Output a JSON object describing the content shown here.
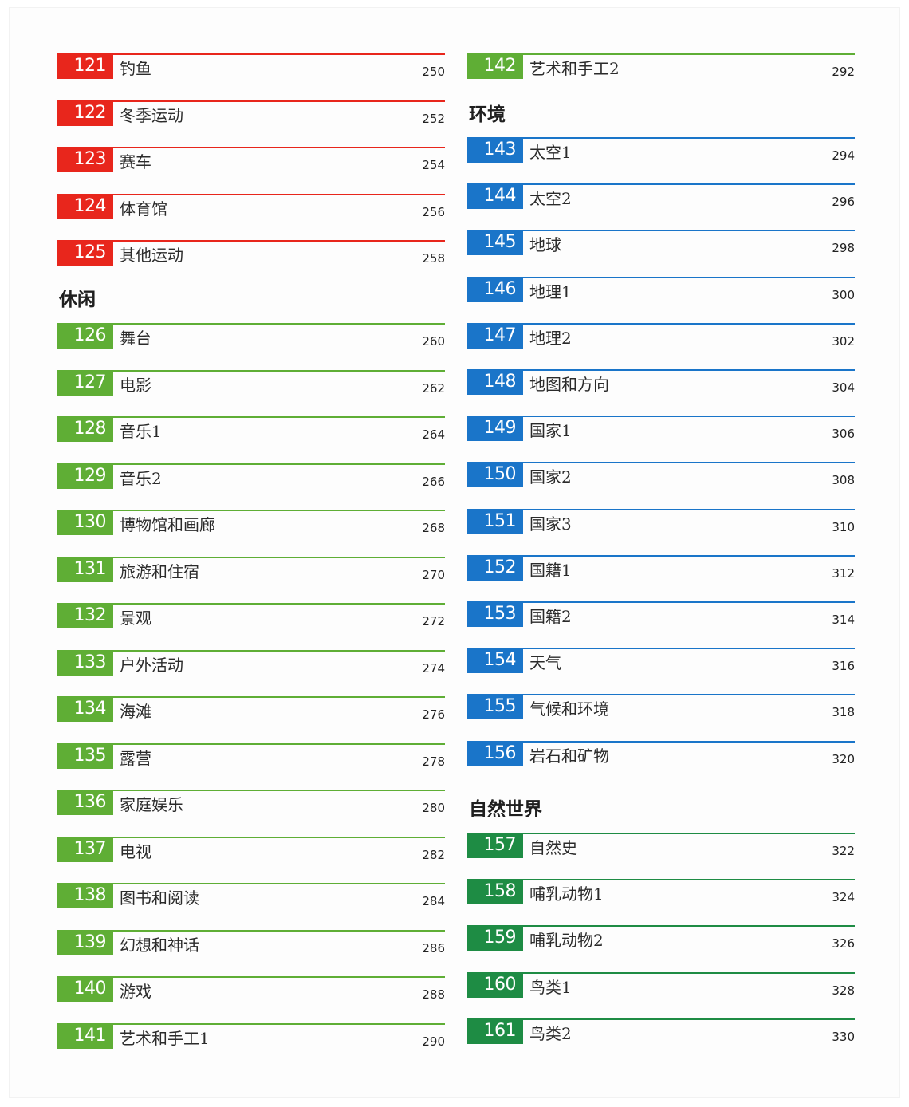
{
  "colors": {
    "sports": "#e8261c",
    "leisure": "#5fae35",
    "environment": "#1a75c9",
    "natural_world": "#1e8c44"
  },
  "left_column": {
    "sports_entries": [
      {
        "num": "121",
        "title": "钓鱼",
        "page": "250"
      },
      {
        "num": "122",
        "title": "冬季运动",
        "page": "252"
      },
      {
        "num": "123",
        "title": "赛车",
        "page": "254"
      },
      {
        "num": "124",
        "title": "体育馆",
        "page": "256"
      },
      {
        "num": "125",
        "title": "其他运动",
        "page": "258"
      }
    ],
    "leisure_heading": "休闲",
    "leisure_entries": [
      {
        "num": "126",
        "title": "舞台",
        "page": "260"
      },
      {
        "num": "127",
        "title": "电影",
        "page": "262"
      },
      {
        "num": "128",
        "title": "音乐1",
        "page": "264"
      },
      {
        "num": "129",
        "title": "音乐2",
        "page": "266"
      },
      {
        "num": "130",
        "title": "博物馆和画廊",
        "page": "268"
      },
      {
        "num": "131",
        "title": "旅游和住宿",
        "page": "270"
      },
      {
        "num": "132",
        "title": "景观",
        "page": "272"
      },
      {
        "num": "133",
        "title": "户外活动",
        "page": "274"
      },
      {
        "num": "134",
        "title": "海滩",
        "page": "276"
      },
      {
        "num": "135",
        "title": "露营",
        "page": "278"
      },
      {
        "num": "136",
        "title": "家庭娱乐",
        "page": "280"
      },
      {
        "num": "137",
        "title": "电视",
        "page": "282"
      },
      {
        "num": "138",
        "title": "图书和阅读",
        "page": "284"
      },
      {
        "num": "139",
        "title": "幻想和神话",
        "page": "286"
      },
      {
        "num": "140",
        "title": "游戏",
        "page": "288"
      },
      {
        "num": "141",
        "title": "艺术和手工1",
        "page": "290"
      }
    ]
  },
  "right_column": {
    "leisure_entries": [
      {
        "num": "142",
        "title": "艺术和手工2",
        "page": "292"
      }
    ],
    "environment_heading": "环境",
    "environment_entries": [
      {
        "num": "143",
        "title": "太空1",
        "page": "294"
      },
      {
        "num": "144",
        "title": "太空2",
        "page": "296"
      },
      {
        "num": "145",
        "title": "地球",
        "page": "298"
      },
      {
        "num": "146",
        "title": "地理1",
        "page": "300"
      },
      {
        "num": "147",
        "title": "地理2",
        "page": "302"
      },
      {
        "num": "148",
        "title": "地图和方向",
        "page": "304"
      },
      {
        "num": "149",
        "title": "国家1",
        "page": "306"
      },
      {
        "num": "150",
        "title": "国家2",
        "page": "308"
      },
      {
        "num": "151",
        "title": "国家3",
        "page": "310"
      },
      {
        "num": "152",
        "title": "国籍1",
        "page": "312"
      },
      {
        "num": "153",
        "title": "国籍2",
        "page": "314"
      },
      {
        "num": "154",
        "title": "天气",
        "page": "316"
      },
      {
        "num": "155",
        "title": "气候和环境",
        "page": "318"
      },
      {
        "num": "156",
        "title": "岩石和矿物",
        "page": "320"
      }
    ],
    "natural_world_heading": "自然世界",
    "natural_world_entries": [
      {
        "num": "157",
        "title": "自然史",
        "page": "322"
      },
      {
        "num": "158",
        "title": "哺乳动物1",
        "page": "324"
      },
      {
        "num": "159",
        "title": "哺乳动物2",
        "page": "326"
      },
      {
        "num": "160",
        "title": "鸟类1",
        "page": "328"
      },
      {
        "num": "161",
        "title": "鸟类2",
        "page": "330"
      }
    ]
  }
}
